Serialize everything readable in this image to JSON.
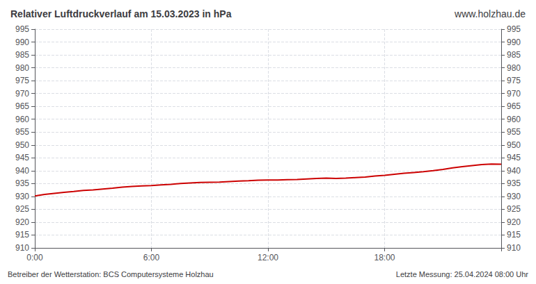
{
  "chart_data": {
    "type": "line",
    "title": "Relativer Luftdruckverlauf am 15.03.2023 in hPa",
    "annotations": [
      "www.holzhau.de",
      "Betreiber der Wetterstation: BCS Computersysteme Holzhau",
      "Letzte Messung: 25.04.2024 08:00 Uhr"
    ],
    "color": "#cc0000",
    "x": [
      0.0,
      0.5,
      1.0,
      1.5,
      2.0,
      2.5,
      3.0,
      3.5,
      4.0,
      4.5,
      5.0,
      5.5,
      6.0,
      6.5,
      7.0,
      7.5,
      8.0,
      8.5,
      9.0,
      9.5,
      10.0,
      10.5,
      11.0,
      11.5,
      12.0,
      12.5,
      13.0,
      13.5,
      14.0,
      14.5,
      15.0,
      15.5,
      16.0,
      16.5,
      17.0,
      17.5,
      18.0,
      18.5,
      19.0,
      19.5,
      20.0,
      20.5,
      21.0,
      21.5,
      22.0,
      22.5,
      23.0,
      23.5,
      24.0
    ],
    "values": [
      930.2,
      930.8,
      931.2,
      931.6,
      931.9,
      932.3,
      932.5,
      932.9,
      933.2,
      933.6,
      933.9,
      934.1,
      934.2,
      934.5,
      934.7,
      935.0,
      935.2,
      935.4,
      935.5,
      935.6,
      935.8,
      936.0,
      936.1,
      936.3,
      936.4,
      936.4,
      936.5,
      936.6,
      936.8,
      937.0,
      937.1,
      937.0,
      937.1,
      937.3,
      937.5,
      937.9,
      938.2,
      938.6,
      939.0,
      939.3,
      939.6,
      940.0,
      940.5,
      941.1,
      941.6,
      942.0,
      942.4,
      942.6,
      942.5
    ],
    "xlim": [
      0,
      24
    ],
    "xticks": [
      {
        "value": 0,
        "label": "0:00"
      },
      {
        "value": 6,
        "label": "6:00"
      },
      {
        "value": 12,
        "label": "12:00"
      },
      {
        "value": 18,
        "label": "18:00"
      }
    ],
    "ylim": [
      910,
      995
    ],
    "yticks": [
      910,
      915,
      920,
      925,
      930,
      935,
      940,
      945,
      950,
      955,
      960,
      965,
      970,
      975,
      980,
      985,
      990,
      995
    ],
    "y2lim": [
      910,
      995
    ],
    "y2ticks": [
      910,
      915,
      920,
      925,
      930,
      935,
      940,
      945,
      950,
      955,
      960,
      965,
      970,
      975,
      980,
      985,
      990,
      995
    ],
    "grid": true
  }
}
